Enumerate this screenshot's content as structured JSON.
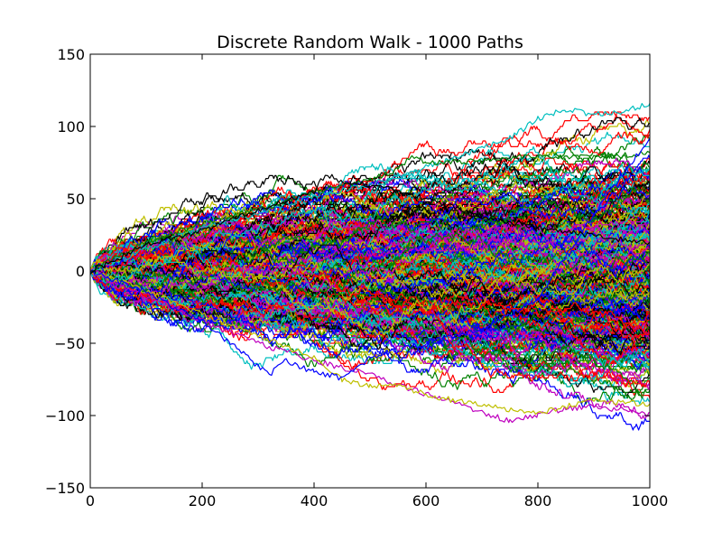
{
  "chart_data": {
    "type": "line",
    "title": "Discrete Random Walk - 1000 Paths",
    "xlabel": "",
    "ylabel": "",
    "xlim": [
      0,
      1000
    ],
    "ylim": [
      -150,
      150
    ],
    "x_ticks": [
      0,
      200,
      400,
      600,
      800,
      1000
    ],
    "y_ticks": [
      -150,
      -100,
      -50,
      0,
      50,
      100,
      150
    ],
    "x_tick_labels": [
      "0",
      "200",
      "400",
      "600",
      "800",
      "1000"
    ],
    "y_tick_labels": [
      "−150",
      "−100",
      "−50",
      "0",
      "50",
      "100",
      "150"
    ],
    "grid": false,
    "legend": "none",
    "steps": 1000,
    "num_paths": 1000,
    "step_size": 1,
    "start_value": 0,
    "series_colors": [
      "#0000ff",
      "#008000",
      "#ff0000",
      "#00bfbf",
      "#bf00bf",
      "#bfbf00",
      "#000000"
    ],
    "highlighted_paths": [
      {
        "color": "#00bfbf",
        "points": [
          [
            0,
            0
          ],
          [
            100,
            15
          ],
          [
            200,
            30
          ],
          [
            300,
            40
          ],
          [
            400,
            52
          ],
          [
            500,
            60
          ],
          [
            600,
            72
          ],
          [
            650,
            78
          ],
          [
            700,
            85
          ],
          [
            750,
            92
          ],
          [
            800,
            105
          ],
          [
            850,
            112
          ],
          [
            900,
            108
          ],
          [
            950,
            110
          ],
          [
            1000,
            116
          ]
        ]
      },
      {
        "color": "#bf00bf",
        "points": [
          [
            0,
            0
          ],
          [
            100,
            -18
          ],
          [
            200,
            -35
          ],
          [
            300,
            -50
          ],
          [
            400,
            -62
          ],
          [
            500,
            -72
          ],
          [
            600,
            -85
          ],
          [
            700,
            -98
          ],
          [
            750,
            -104
          ],
          [
            800,
            -100
          ],
          [
            850,
            -95
          ],
          [
            900,
            -94
          ],
          [
            950,
            -96
          ],
          [
            1000,
            -100
          ]
        ]
      },
      {
        "color": "#bfbf00",
        "points": [
          [
            0,
            0
          ],
          [
            100,
            -14
          ],
          [
            200,
            -30
          ],
          [
            300,
            -45
          ],
          [
            400,
            -60
          ],
          [
            450,
            -75
          ],
          [
            500,
            -80
          ],
          [
            550,
            -78
          ],
          [
            600,
            -86
          ],
          [
            700,
            -93
          ],
          [
            800,
            -98
          ],
          [
            900,
            -90
          ],
          [
            1000,
            -92
          ]
        ]
      },
      {
        "color": "#008000",
        "points": [
          [
            0,
            0
          ],
          [
            100,
            20
          ],
          [
            200,
            33
          ],
          [
            300,
            42
          ],
          [
            400,
            55
          ],
          [
            500,
            63
          ],
          [
            550,
            70
          ],
          [
            575,
            80
          ],
          [
            600,
            75
          ],
          [
            700,
            76
          ],
          [
            800,
            80
          ],
          [
            900,
            78
          ],
          [
            1000,
            82
          ]
        ]
      },
      {
        "color": "#0000ff",
        "points": [
          [
            0,
            0
          ],
          [
            100,
            -15
          ],
          [
            200,
            -35
          ],
          [
            250,
            -50
          ],
          [
            300,
            -66
          ],
          [
            320,
            -72
          ],
          [
            350,
            -62
          ],
          [
            400,
            -70
          ],
          [
            450,
            -74
          ],
          [
            500,
            -60
          ],
          [
            600,
            -50
          ],
          [
            700,
            -40
          ],
          [
            800,
            -20
          ],
          [
            900,
            40
          ],
          [
            1000,
            92
          ]
        ]
      },
      {
        "color": "#000000",
        "points": [
          [
            0,
            0
          ],
          [
            100,
            18
          ],
          [
            200,
            28
          ],
          [
            300,
            42
          ],
          [
            400,
            55
          ],
          [
            420,
            67
          ],
          [
            450,
            62
          ],
          [
            500,
            60
          ],
          [
            600,
            50
          ],
          [
            700,
            38
          ],
          [
            800,
            30
          ],
          [
            900,
            24
          ],
          [
            1000,
            20
          ]
        ]
      }
    ]
  }
}
